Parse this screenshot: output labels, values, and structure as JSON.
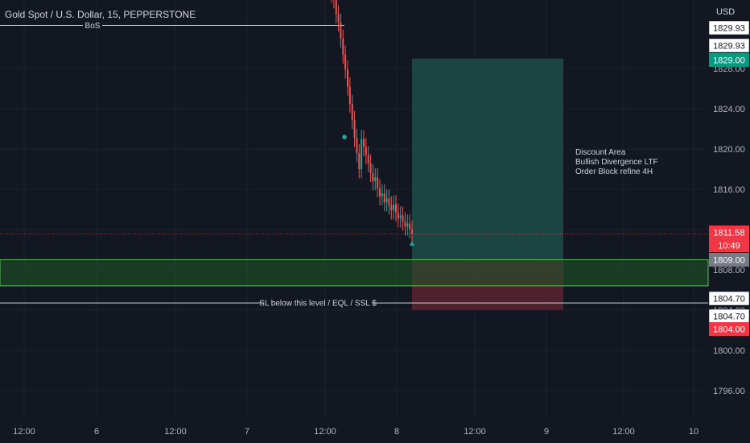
{
  "header": {
    "symbol_title": "Gold Spot / U.S. Dollar, 15, PEPPERSTONE",
    "currency": "USD"
  },
  "annotations": {
    "bos_label": "BoS",
    "sl_label": "SL below this level / EQL / SSL $",
    "notes": [
      "Discount Area",
      "Bullish Divergence LTF",
      "Order Block refine 4H"
    ]
  },
  "price_labels": [
    {
      "text": "1829.93",
      "style": "outline"
    },
    {
      "text": "1829.93",
      "style": "outline"
    },
    {
      "text": "1829.00",
      "style": "green"
    },
    {
      "text": "1811.58",
      "style": "red"
    },
    {
      "text": "10:49",
      "style": "red"
    },
    {
      "text": "1809.00",
      "style": "gray"
    },
    {
      "text": "1804.70",
      "style": "outline"
    },
    {
      "text": "1804.70",
      "style": "outline"
    },
    {
      "text": "1804.00",
      "style": "red"
    }
  ],
  "colors": {
    "background": "#131722",
    "up": "#26a69a",
    "down": "#ef5350",
    "target_zone": "#1f4c47",
    "stop_zone": "#5a2230",
    "order_block": "#1f5a2a",
    "order_block_border": "#5cbf5c",
    "grid": "#1e222d",
    "text": "#d1d4dc",
    "axis_text": "#b2b5be"
  },
  "chart_data": {
    "type": "candlestick",
    "title": "Gold Spot / U.S. Dollar, 15, PEPPERSTONE",
    "ylabel": "USD",
    "y_axis_ticks": [
      1796,
      1800,
      1804,
      1808,
      1812,
      1816,
      1820,
      1824,
      1828
    ],
    "y_tick_labels": [
      "1796.00",
      "1800.00",
      "1804.00",
      "1808.00",
      "1812.00",
      "1816.00",
      "1820.00",
      "1824.00",
      "1828.00"
    ],
    "x_tick_labels": [
      "12:00",
      "6",
      "12:00",
      "7",
      "12:00",
      "8",
      "12:00",
      "9",
      "12:00",
      "10"
    ],
    "ylim": [
      1793.5,
      1834.5
    ],
    "grid": true,
    "last_price": 1811.58,
    "countdown": "10:49",
    "levels": [
      {
        "name": "BoS",
        "price": 1832.3
      },
      {
        "name": "SL below this level / EQL / SSL $",
        "price": 1804.7
      },
      {
        "name": "current",
        "price": 1811.58
      }
    ],
    "order_block_zone": {
      "top": 1809.0,
      "bottom": 1806.4
    },
    "long_position": {
      "entry": 1809.0,
      "target": 1829.0,
      "stop": 1804.0
    },
    "candles_close": [
      1835.5,
      1834.9,
      1833.4,
      1832.6,
      1831.0,
      1829.4,
      1827.9,
      1826.2,
      1824.5,
      1822.9,
      1821.1,
      1819.6,
      1818.0,
      1821.0,
      1820.2,
      1819.4,
      1818.6,
      1817.6,
      1816.8,
      1817.2,
      1816.1,
      1815.3,
      1815.6,
      1814.7,
      1815.1,
      1814.4,
      1813.9,
      1814.5,
      1813.7,
      1813.1,
      1813.4,
      1812.8,
      1812.3,
      1812.6,
      1812.0,
      1811.6
    ],
    "markers": [
      {
        "type": "dot",
        "price": 1821.2
      },
      {
        "type": "triangle-up",
        "price": 1811.2
      }
    ]
  }
}
